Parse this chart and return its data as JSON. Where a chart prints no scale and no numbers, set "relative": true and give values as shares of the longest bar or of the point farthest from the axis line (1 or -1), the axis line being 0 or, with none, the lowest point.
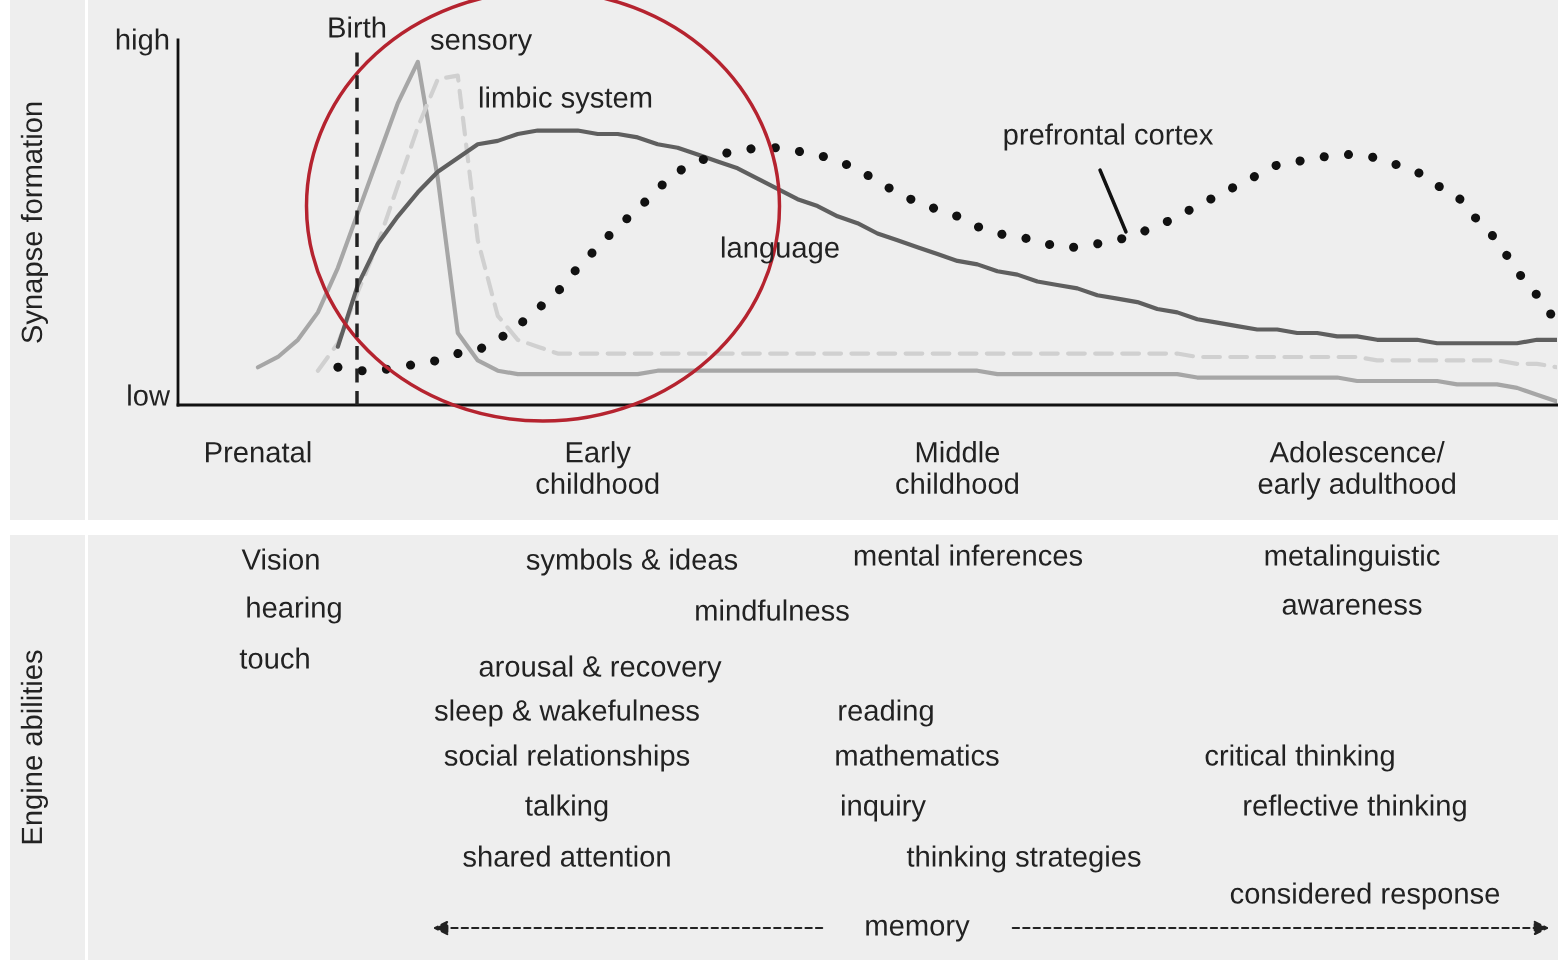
{
  "chart_data": [
    {
      "type": "line",
      "ylabel": "Synapse formation",
      "relative": true,
      "legend": false,
      "grid": false,
      "marker": "none",
      "categories": [
        null,
        null,
        null,
        null,
        "Prenatal",
        null,
        null,
        null,
        null,
        null,
        null,
        null,
        null,
        null,
        null,
        null,
        null,
        null,
        null,
        null,
        null,
        "Early\nchildhood",
        null,
        null,
        null,
        null,
        null,
        null,
        null,
        null,
        null,
        null,
        null,
        null,
        null,
        null,
        null,
        null,
        null,
        "Middle\nchildhood",
        null,
        null,
        null,
        null,
        null,
        null,
        null,
        null,
        null,
        null,
        null,
        null,
        null,
        null,
        null,
        null,
        null,
        null,
        null,
        "Adolescence/\nearly adulthood",
        null,
        null,
        null,
        null,
        null,
        null,
        null,
        null,
        null,
        null
      ],
      "annotations": [
        "Birth",
        "high",
        "low"
      ],
      "series": [
        {
          "name": "sensory",
          "color": "#a6a6a6",
          "line_style": "solid",
          "values": [
            null,
            null,
            null,
            null,
            0.11,
            0.14,
            0.19,
            0.27,
            0.4,
            0.56,
            0.72,
            0.88,
            1.0,
            0.66,
            0.21,
            0.13,
            0.1,
            0.09,
            0.09,
            0.09,
            0.09,
            0.09,
            0.09,
            0.09,
            0.1,
            0.1,
            0.1,
            0.1,
            0.1,
            0.1,
            0.1,
            0.1,
            0.1,
            0.1,
            0.1,
            0.1,
            0.1,
            0.1,
            0.1,
            0.1,
            0.1,
            0.09,
            0.09,
            0.09,
            0.09,
            0.09,
            0.09,
            0.09,
            0.09,
            0.09,
            0.09,
            0.08,
            0.08,
            0.08,
            0.08,
            0.08,
            0.08,
            0.08,
            0.08,
            0.07,
            0.07,
            0.07,
            0.07,
            0.07,
            0.06,
            0.06,
            0.06,
            0.05,
            0.03,
            0.01
          ]
        },
        {
          "name": "limbic system",
          "color": "#d0d0d0",
          "line_style": "dashed",
          "values": [
            null,
            null,
            null,
            null,
            null,
            null,
            null,
            0.1,
            0.18,
            0.33,
            0.47,
            0.64,
            0.81,
            0.95,
            0.96,
            0.48,
            0.26,
            0.19,
            0.17,
            0.15,
            0.15,
            0.15,
            0.15,
            0.15,
            0.15,
            0.15,
            0.15,
            0.15,
            0.15,
            0.15,
            0.15,
            0.15,
            0.15,
            0.15,
            0.15,
            0.15,
            0.15,
            0.15,
            0.15,
            0.15,
            0.15,
            0.15,
            0.15,
            0.15,
            0.15,
            0.15,
            0.15,
            0.15,
            0.15,
            0.15,
            0.15,
            0.14,
            0.14,
            0.14,
            0.14,
            0.14,
            0.14,
            0.14,
            0.14,
            0.14,
            0.13,
            0.13,
            0.13,
            0.13,
            0.13,
            0.13,
            0.13,
            0.12,
            0.12,
            0.11
          ]
        },
        {
          "name": "language",
          "color": "#5f5f5f",
          "line_style": "solid",
          "values": [
            null,
            null,
            null,
            null,
            null,
            null,
            null,
            null,
            0.17,
            0.35,
            0.47,
            0.55,
            0.62,
            0.68,
            0.72,
            0.76,
            0.77,
            0.79,
            0.8,
            0.8,
            0.8,
            0.79,
            0.79,
            0.78,
            0.76,
            0.75,
            0.73,
            0.71,
            0.69,
            0.66,
            0.63,
            0.6,
            0.58,
            0.55,
            0.53,
            0.5,
            0.48,
            0.46,
            0.44,
            0.42,
            0.41,
            0.39,
            0.38,
            0.36,
            0.35,
            0.34,
            0.32,
            0.31,
            0.3,
            0.28,
            0.27,
            0.25,
            0.24,
            0.23,
            0.22,
            0.22,
            0.21,
            0.21,
            0.2,
            0.2,
            0.19,
            0.19,
            0.19,
            0.18,
            0.18,
            0.18,
            0.18,
            0.18,
            0.19,
            0.19
          ]
        },
        {
          "name": "prefrontal cortex",
          "color": "#111111",
          "line_style": "dotted",
          "values": [
            null,
            null,
            null,
            null,
            null,
            null,
            null,
            null,
            0.11,
            0.1,
            0.1,
            0.11,
            0.12,
            0.13,
            0.15,
            0.16,
            0.19,
            0.23,
            0.28,
            0.33,
            0.4,
            0.46,
            0.52,
            0.57,
            0.63,
            0.68,
            0.71,
            0.73,
            0.74,
            0.75,
            0.75,
            0.74,
            0.73,
            0.71,
            0.69,
            0.65,
            0.62,
            0.59,
            0.57,
            0.55,
            0.52,
            0.5,
            0.49,
            0.48,
            0.46,
            0.46,
            0.47,
            0.48,
            0.5,
            0.52,
            0.55,
            0.58,
            0.61,
            0.64,
            0.67,
            0.7,
            0.71,
            0.72,
            0.73,
            0.73,
            0.72,
            0.7,
            0.68,
            0.64,
            0.61,
            0.54,
            0.48,
            0.39,
            0.32,
            0.24
          ]
        }
      ]
    },
    {
      "type": "other",
      "ylabel": "Engine abilities",
      "annotations": [
        "Vision",
        "hearing",
        "touch",
        "symbols & ideas",
        "mental inferences",
        "metalinguistic",
        "awareness",
        "mindfulness",
        "arousal & recovery",
        "sleep & wakefulness",
        "reading",
        "social relationships",
        "mathematics",
        "critical thinking",
        "talking",
        "inquiry",
        "reflective thinking",
        "shared attention",
        "thinking strategies",
        "considered response",
        "memory"
      ]
    }
  ]
}
